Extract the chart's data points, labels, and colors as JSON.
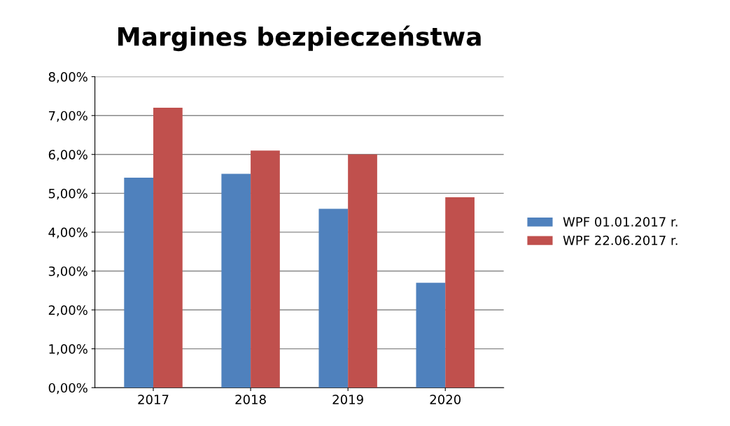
{
  "chart_data": {
    "type": "bar",
    "title": "Margines bezpieczeństwa",
    "categories": [
      "2017",
      "2018",
      "2019",
      "2020"
    ],
    "series": [
      {
        "name": "WPF 01.01.2017 r.",
        "color": "#4f81bd",
        "values": [
          5.4,
          5.5,
          4.6,
          2.7
        ]
      },
      {
        "name": "WPF 22.06.2017 r.",
        "color": "#c0504d",
        "values": [
          7.2,
          6.1,
          6.0,
          4.9
        ]
      }
    ],
    "ylim": [
      0,
      8
    ],
    "yticks": [
      {
        "value": 0,
        "label": "0,00%"
      },
      {
        "value": 1,
        "label": "1,00%"
      },
      {
        "value": 2,
        "label": "2,00%"
      },
      {
        "value": 3,
        "label": "3,00%"
      },
      {
        "value": 4,
        "label": "4,00%"
      },
      {
        "value": 5,
        "label": "5,00%"
      },
      {
        "value": 6,
        "label": "6,00%"
      },
      {
        "value": 7,
        "label": "7,00%"
      },
      {
        "value": 8,
        "label": "8,00%"
      }
    ],
    "grid": "y",
    "legend": "right"
  }
}
